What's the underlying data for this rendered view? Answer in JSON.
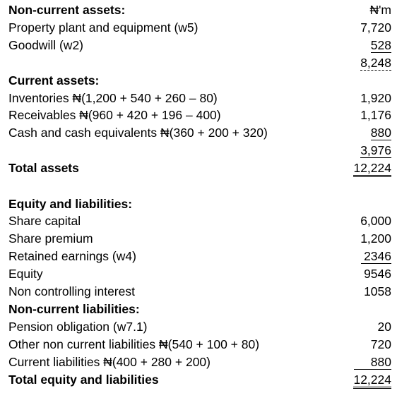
{
  "rows": [
    {
      "label": "Non-current assets:",
      "amount": "₦'m"
    },
    {
      "label": "Property plant and equipment (w5)",
      "amount": "7,720"
    },
    {
      "label": "Goodwill (w2)",
      "amount": "528"
    },
    {
      "amount": "8,248"
    },
    {
      "label": "Current assets:"
    },
    {
      "label": "Inventories ₦(1,200 + 540 + 260 – 80)",
      "amount": "1,920"
    },
    {
      "label": "Receivables ₦(960 + 420 + 196 – 400)",
      "amount": "1,176"
    },
    {
      "label": "Cash and cash equivalents ₦(360 + 200 + 320)",
      "amount": "880"
    },
    {
      "amount": "3,976"
    },
    {
      "label": "Total assets",
      "amount": "12,224"
    },
    {
      "label": "Equity and liabilities:"
    },
    {
      "label": "Share capital",
      "amount": "6,000"
    },
    {
      "label": "Share premium",
      "amount": "1,200"
    },
    {
      "label": "Retained earnings (w4)",
      "amount": "2346"
    },
    {
      "label": "Equity",
      "amount": "9546"
    },
    {
      "label": "Non controlling interest",
      "amount": "1058"
    },
    {
      "label": "Non-current liabilities:"
    },
    {
      "label": "Pension obligation (w7.1)",
      "amount": "20"
    },
    {
      "label": "Other non current liabilities ₦(540 + 100 + 80)",
      "amount": "720"
    },
    {
      "label": "Current liabilities ₦(400 + 280 + 200)",
      "amount": "880"
    },
    {
      "label": "Total equity and liabilities",
      "amount": "12,224"
    }
  ]
}
